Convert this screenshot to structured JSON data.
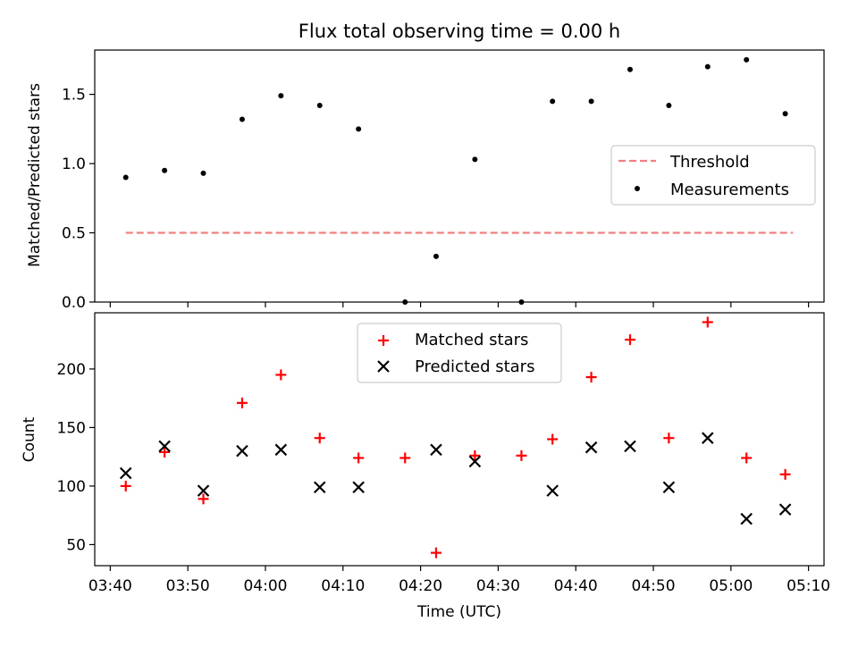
{
  "chart_data": [
    {
      "type": "scatter",
      "title": "Flux total observing time = 0.00 h",
      "ylabel": "Matched/Predicted stars",
      "xlabel": "",
      "ylim": [
        0,
        1.82
      ],
      "yticks": [
        0.0,
        0.5,
        1.0,
        1.5
      ],
      "ytick_labels": [
        "0.0",
        "0.5",
        "1.0",
        "1.5"
      ],
      "legend_position": "center-right",
      "series": [
        {
          "name": "Threshold",
          "style": "dashed-line",
          "color": "#f08080",
          "x": [
            "03:42",
            "05:08"
          ],
          "y": [
            0.5,
            0.5
          ]
        },
        {
          "name": "Measurements",
          "style": "dot",
          "color": "#000000",
          "x": [
            "03:42",
            "03:47",
            "03:52",
            "03:57",
            "04:02",
            "04:07",
            "04:12",
            "04:18",
            "04:22",
            "04:27",
            "04:33",
            "04:37",
            "04:42",
            "04:47",
            "04:52",
            "04:57",
            "05:02",
            "05:07"
          ],
          "y": [
            0.9,
            0.95,
            0.93,
            1.32,
            1.49,
            1.42,
            1.25,
            0.0,
            0.33,
            1.03,
            0.0,
            1.45,
            1.45,
            1.68,
            1.42,
            1.7,
            1.75,
            1.36
          ]
        }
      ]
    },
    {
      "type": "scatter",
      "title": "",
      "ylabel": "Count",
      "xlabel": "Time (UTC)",
      "ylim": [
        32,
        248
      ],
      "yticks": [
        50,
        100,
        150,
        200
      ],
      "ytick_labels": [
        "50",
        "100",
        "150",
        "200"
      ],
      "xlim": [
        "03:38",
        "05:12"
      ],
      "xtick_labels": [
        "03:40",
        "03:50",
        "04:00",
        "04:10",
        "04:20",
        "04:30",
        "04:40",
        "04:50",
        "05:00",
        "05:10"
      ],
      "legend_position": "top-center",
      "series": [
        {
          "name": "Matched stars",
          "marker": "+",
          "color": "#ff0000",
          "x": [
            "03:42",
            "03:47",
            "03:52",
            "03:57",
            "04:02",
            "04:07",
            "04:12",
            "04:18",
            "04:22",
            "04:27",
            "04:33",
            "04:37",
            "04:42",
            "04:47",
            "04:52",
            "04:57",
            "05:02",
            "05:07"
          ],
          "y": [
            100,
            129,
            89,
            171,
            195,
            141,
            124,
            124,
            43,
            126,
            126,
            140,
            193,
            225,
            141,
            240,
            124,
            110
          ]
        },
        {
          "name": "Predicted stars",
          "marker": "x",
          "color": "#000000",
          "x": [
            "03:42",
            "03:47",
            "03:52",
            "03:57",
            "04:02",
            "04:07",
            "04:12",
            "04:22",
            "04:27",
            "04:37",
            "04:42",
            "04:47",
            "04:52",
            "04:57",
            "05:02",
            "05:07"
          ],
          "y": [
            111,
            134,
            96,
            130,
            131,
            99,
            99,
            131,
            121,
            96,
            133,
            134,
            99,
            141,
            72,
            80
          ]
        }
      ]
    }
  ]
}
